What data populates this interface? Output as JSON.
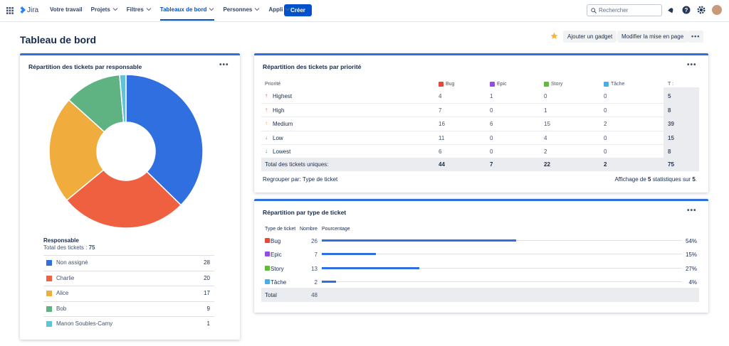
{
  "nav": {
    "brand": "Jira",
    "items": [
      "Votre travail",
      "Projets",
      "Filtres",
      "Tableaux de bord",
      "Personnes",
      "Appli"
    ],
    "has_menu": [
      false,
      true,
      true,
      true,
      true,
      true
    ],
    "active": 3,
    "create": "Créer",
    "search": "Rechercher"
  },
  "header": {
    "title": "Tableau de bord",
    "buttons": [
      "Ajouter un gadget",
      "Modifier la mise en page"
    ]
  },
  "chart_data": {
    "type": "pie",
    "title": "Répartition des tickets par responsable",
    "legend_title": "Responsable",
    "total_label": "Total des tickets :",
    "total": 75,
    "categories": [
      "Non assigné",
      "Charlie",
      "Alice",
      "Bob",
      "Manon Soubles-Camy"
    ],
    "values": [
      28,
      20,
      17,
      9,
      1
    ],
    "colors": [
      "#2f6fe0",
      "#ee6040",
      "#f0ac3d",
      "#5fb383",
      "#5fc4d8"
    ]
  },
  "priority_table": {
    "title": "Répartition des tickets par priorité",
    "columns": [
      "Priorité",
      "Bug",
      "Epic",
      "Story",
      "Tâche",
      "T :"
    ],
    "column_colors": [
      "#e5493a",
      "#904ee2",
      "#63ba3c",
      "#4bade8"
    ],
    "rows": [
      {
        "icon": "↑",
        "color": "#d04437",
        "label": "Highest",
        "values": [
          4,
          1,
          0,
          0,
          5
        ]
      },
      {
        "icon": "↑",
        "color": "#e0643d",
        "label": "High",
        "values": [
          7,
          0,
          1,
          0,
          8
        ]
      },
      {
        "icon": "↑",
        "color": "#e9a23b",
        "label": "Medium",
        "values": [
          16,
          6,
          15,
          2,
          39
        ]
      },
      {
        "icon": "↓",
        "color": "#57a55a",
        "label": "Low",
        "values": [
          11,
          0,
          4,
          0,
          15
        ]
      },
      {
        "icon": "↓",
        "color": "#2a9d4b",
        "label": "Lowest",
        "values": [
          6,
          0,
          2,
          0,
          8
        ]
      }
    ],
    "total_label": "Total des tickets uniques:",
    "totals": [
      44,
      7,
      22,
      2,
      75
    ],
    "group_by": "Regrouper par: Type de ticket",
    "summary": [
      "Affichage de",
      5,
      "statistiques sur",
      5,
      "."
    ]
  },
  "type_table": {
    "title": "Répartition par type de ticket",
    "columns": [
      "Type de ticket",
      "Nombre",
      "Pourcentage"
    ],
    "rows": [
      {
        "name": "Bug",
        "color": "#e5493a",
        "count": 26,
        "percent": 54,
        "percent_label": "54%"
      },
      {
        "name": "Epic",
        "color": "#904ee2",
        "count": 7,
        "percent": 15,
        "percent_label": "15%"
      },
      {
        "name": "Story",
        "color": "#63ba3c",
        "count": 13,
        "percent": 27,
        "percent_label": "27%"
      },
      {
        "name": "Tâche",
        "color": "#4bade8",
        "count": 2,
        "percent": 4,
        "percent_label": "4%"
      }
    ],
    "total_label": "Total",
    "total": 48
  }
}
